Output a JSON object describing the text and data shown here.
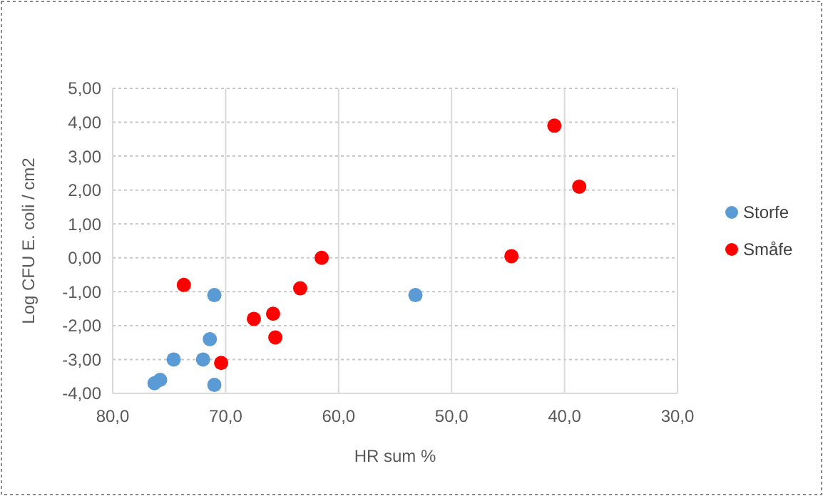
{
  "chart_data": {
    "type": "scatter",
    "xlabel": "HR sum %",
    "ylabel": "Log CFU E. coli / cm2",
    "xlim": [
      80,
      30
    ],
    "xticks": [
      {
        "value": 80,
        "label": "80,0"
      },
      {
        "value": 70,
        "label": "70,0"
      },
      {
        "value": 60,
        "label": "60,0"
      },
      {
        "value": 50,
        "label": "50,0"
      },
      {
        "value": 40,
        "label": "40,0"
      },
      {
        "value": 30,
        "label": "30,0"
      }
    ],
    "ylim": [
      -4,
      5
    ],
    "yticks": [
      {
        "value": -4,
        "label": "-4,00"
      },
      {
        "value": -3,
        "label": "-3,00"
      },
      {
        "value": -2,
        "label": "-2,00"
      },
      {
        "value": -1,
        "label": "-1,00"
      },
      {
        "value": 0,
        "label": "0,00"
      },
      {
        "value": 1,
        "label": "1,00"
      },
      {
        "value": 2,
        "label": "2,00"
      },
      {
        "value": 3,
        "label": "3,00"
      },
      {
        "value": 4,
        "label": "4,00"
      },
      {
        "value": 5,
        "label": "5,00"
      }
    ],
    "grid": true,
    "legend": "right",
    "marker": "circle",
    "series": [
      {
        "name": "Storfe",
        "color": "#5b9bd5",
        "x": [
          76.3,
          75.8,
          74.6,
          72.0,
          71.4,
          71.0,
          71.0,
          53.2
        ],
        "values": [
          -3.7,
          -3.6,
          -3.0,
          -3.0,
          -2.4,
          -1.1,
          -3.75,
          -1.1
        ]
      },
      {
        "name": "Småfe",
        "color": "#ff0000",
        "x": [
          73.7,
          70.4,
          67.5,
          65.8,
          65.6,
          63.4,
          61.5,
          44.7,
          40.9,
          38.7
        ],
        "values": [
          -0.8,
          -3.1,
          -1.8,
          -1.65,
          -2.35,
          -0.9,
          0.0,
          0.05,
          3.9,
          2.1
        ]
      }
    ]
  }
}
